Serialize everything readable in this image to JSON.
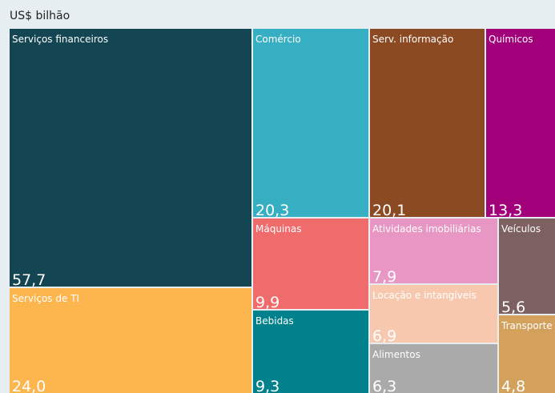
{
  "chart_data": {
    "type": "treemap",
    "title": "US$ bilhão",
    "categories": [
      "Serviços financeiros",
      "Serviços de TI",
      "Comércio",
      "Serv. informação",
      "Químicos",
      "Máquinas",
      "Bebidas",
      "Atividades imobiliárias",
      "Veículos",
      "Locação e intangíveis",
      "Alimentos",
      "Transporte"
    ],
    "values": [
      57.7,
      24.0,
      20.3,
      20.1,
      13.3,
      9.9,
      9.3,
      7.9,
      5.6,
      6.9,
      6.3,
      4.8
    ],
    "value_labels": [
      "57,7",
      "24,0",
      "20,3",
      "20,1",
      "13,3",
      "9,9",
      "9,3",
      "7,9",
      "5,6",
      "6,9",
      "6,3",
      "4,8"
    ],
    "colors": [
      "#134652",
      "#fdb54e",
      "#37afc3",
      "#8c4a22",
      "#a2007b",
      "#f06b6b",
      "#00818b",
      "#e896c3",
      "#7d6060",
      "#f8c8ae",
      "#aaaaaa",
      "#d4a15c"
    ]
  }
}
